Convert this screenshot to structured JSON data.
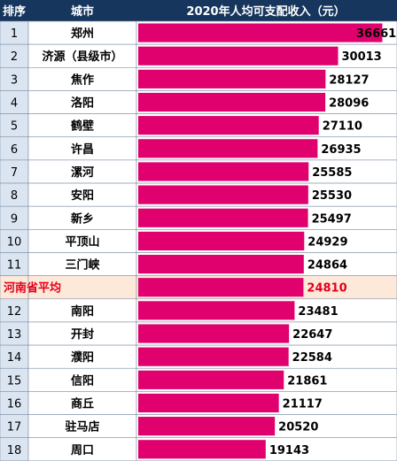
{
  "colors": {
    "header_bg": "#17365d",
    "header_text": "#ffffff",
    "rank_col_bg": "#dbe5f1",
    "city_col_bg": "#ffffff",
    "bar_area_bg": "#ffffff",
    "bar": "#e0006e",
    "border": "#7f8fa6",
    "text": "#000000",
    "avg_row_bg": "#fde9d9",
    "avg_text": "#e3001b"
  },
  "chart_data": {
    "type": "bar",
    "orientation": "horizontal",
    "title": "2020年人均可支配收入（元）",
    "columns": [
      "排序",
      "城市",
      "2020年人均可支配收入（元）"
    ],
    "ranks": [
      "1",
      "2",
      "3",
      "4",
      "5",
      "6",
      "7",
      "8",
      "9",
      "10",
      "11",
      "",
      "12",
      "13",
      "14",
      "15",
      "16",
      "17",
      "18"
    ],
    "categories": [
      "郑州",
      "济源（县级市）",
      "焦作",
      "洛阳",
      "鹤壁",
      "许昌",
      "漯河",
      "安阳",
      "新乡",
      "平顶山",
      "三门峡",
      "河南省平均",
      "南阳",
      "开封",
      "濮阳",
      "信阳",
      "商丘",
      "驻马店",
      "周口"
    ],
    "values": [
      36661,
      30013,
      28127,
      28096,
      27110,
      26935,
      25585,
      25530,
      25497,
      24929,
      24864,
      24810,
      23481,
      22647,
      22584,
      21861,
      21117,
      20520,
      19143
    ],
    "highlight_category": "河南省平均",
    "xlim": [
      0,
      37000
    ],
    "grid": false
  }
}
